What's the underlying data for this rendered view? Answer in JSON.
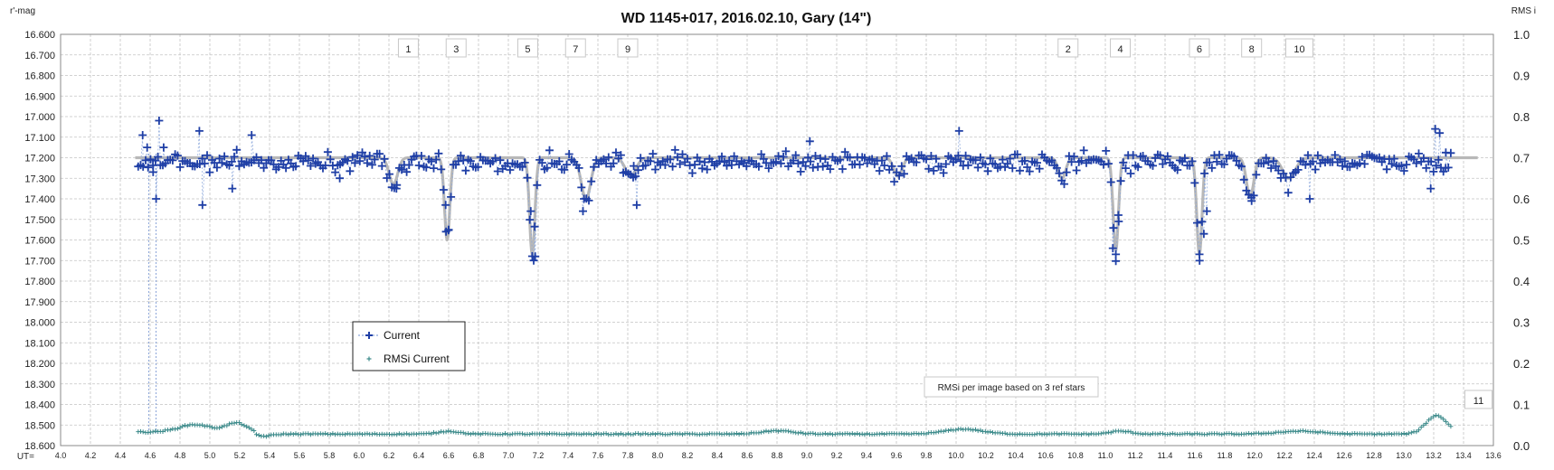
{
  "chart_data": {
    "type": "scatter",
    "title": "WD 1145+017, 2016.02.10,  Gary (14\")",
    "ylabel_left": "r'-mag",
    "ylabel_right": "RMS i",
    "xlabel": "UT=",
    "xlim": [
      4.0,
      13.6
    ],
    "x_ticks": [
      "4.0",
      "4.2",
      "4.4",
      "4.6",
      "4.8",
      "5.0",
      "5.2",
      "5.4",
      "5.6",
      "5.8",
      "6.0",
      "6.2",
      "6.4",
      "6.6",
      "6.8",
      "7.0",
      "7.2",
      "7.4",
      "7.6",
      "7.8",
      "8.0",
      "8.2",
      "8.4",
      "8.6",
      "8.8",
      "9.0",
      "9.2",
      "9.4",
      "9.6",
      "9.8",
      "10.0",
      "10.2",
      "10.4",
      "10.6",
      "10.8",
      "11.0",
      "11.2",
      "11.4",
      "11.6",
      "11.8",
      "12.0",
      "12.2",
      "12.4",
      "12.6",
      "12.8",
      "13.0",
      "13.2",
      "13.4",
      "13.6"
    ],
    "ylim_left": [
      16.6,
      18.6
    ],
    "y_ticks_left": [
      "16.600",
      "16.700",
      "16.800",
      "16.900",
      "17.000",
      "17.100",
      "17.200",
      "17.300",
      "17.400",
      "17.500",
      "17.600",
      "17.700",
      "17.800",
      "17.900",
      "18.000",
      "18.100",
      "18.200",
      "18.300",
      "18.400",
      "18.500",
      "18.600"
    ],
    "ylim_right": [
      0.0,
      1.0
    ],
    "y_ticks_right": [
      "1.0",
      "0.9",
      "0.8",
      "0.7",
      "0.6",
      "0.5",
      "0.4",
      "0.3",
      "0.2",
      "0.1",
      "0.0"
    ],
    "grid": true,
    "model_baseline": 17.2,
    "dips": [
      {
        "x": 6.23,
        "depth": 0.13,
        "width": 0.04
      },
      {
        "x": 6.59,
        "depth": 0.4,
        "width": 0.025
      },
      {
        "x": 7.16,
        "depth": 0.47,
        "width": 0.025
      },
      {
        "x": 7.52,
        "depth": 0.2,
        "width": 0.045
      },
      {
        "x": 7.82,
        "depth": 0.09,
        "width": 0.05
      },
      {
        "x": 9.61,
        "depth": 0.09,
        "width": 0.04
      },
      {
        "x": 10.71,
        "depth": 0.1,
        "width": 0.035
      },
      {
        "x": 11.07,
        "depth": 0.45,
        "width": 0.025
      },
      {
        "x": 11.63,
        "depth": 0.47,
        "width": 0.025
      },
      {
        "x": 11.97,
        "depth": 0.19,
        "width": 0.035
      },
      {
        "x": 12.23,
        "depth": 0.1,
        "width": 0.06
      }
    ],
    "series": [
      {
        "name": "Current",
        "color": "#1f3fa6",
        "x_start": 4.52,
        "x_end": 13.32,
        "baseline": 17.22,
        "scatter": 0.045,
        "extreme_points": [
          [
            4.55,
            17.09
          ],
          [
            4.58,
            17.15
          ],
          [
            4.62,
            17.27
          ],
          [
            4.64,
            17.4
          ],
          [
            4.66,
            17.02
          ],
          [
            4.69,
            17.15
          ],
          [
            4.95,
            17.43
          ],
          [
            4.93,
            17.07
          ],
          [
            5.15,
            17.35
          ],
          [
            5.28,
            17.09
          ],
          [
            5.87,
            17.3
          ],
          [
            6.25,
            17.35
          ],
          [
            6.58,
            17.43
          ],
          [
            6.6,
            17.55
          ],
          [
            7.15,
            17.46
          ],
          [
            7.18,
            17.68
          ],
          [
            7.17,
            17.7
          ],
          [
            7.5,
            17.46
          ],
          [
            7.86,
            17.43
          ],
          [
            7.84,
            17.24
          ],
          [
            9.02,
            17.12
          ],
          [
            10.02,
            17.07
          ],
          [
            11.05,
            17.64
          ],
          [
            11.07,
            17.67
          ],
          [
            11.09,
            17.51
          ],
          [
            11.63,
            17.67
          ],
          [
            11.66,
            17.57
          ],
          [
            11.68,
            17.46
          ],
          [
            11.96,
            17.38
          ],
          [
            11.98,
            17.41
          ],
          [
            12.37,
            17.4
          ],
          [
            13.18,
            17.35
          ],
          [
            13.21,
            17.06
          ],
          [
            13.24,
            17.08
          ],
          [
            13.28,
            17.25
          ]
        ]
      },
      {
        "name": "RMSi Current",
        "color": "#3d8b8b",
        "baseline_rms": 0.028,
        "bumps": [
          {
            "x": 4.9,
            "h": 0.018,
            "w": 0.15
          },
          {
            "x": 5.18,
            "h": 0.022,
            "w": 0.1
          },
          {
            "x": 5.35,
            "h": -0.006,
            "w": 0.08
          },
          {
            "x": 6.6,
            "h": 0.007,
            "w": 0.1
          },
          {
            "x": 8.8,
            "h": 0.008,
            "w": 0.15
          },
          {
            "x": 10.05,
            "h": 0.012,
            "w": 0.18
          },
          {
            "x": 11.1,
            "h": 0.007,
            "w": 0.1
          },
          {
            "x": 12.3,
            "h": 0.007,
            "w": 0.2
          },
          {
            "x": 13.22,
            "h": 0.045,
            "w": 0.1
          }
        ]
      }
    ],
    "legend": {
      "position": "lower-left",
      "entries": [
        "Current",
        "RMSi Current"
      ]
    },
    "note": "RMSi per image based on 3 ref stars",
    "fragment_labels": [
      {
        "text": "1",
        "x": 6.33,
        "y": 16.62
      },
      {
        "text": "3",
        "x": 6.65,
        "y": 16.61
      },
      {
        "text": "5",
        "x": 7.13,
        "y": 16.61
      },
      {
        "text": "7",
        "x": 7.45,
        "y": 16.61
      },
      {
        "text": "9",
        "x": 7.8,
        "y": 16.6
      },
      {
        "text": "2",
        "x": 10.75,
        "y": 16.61
      },
      {
        "text": "4",
        "x": 11.1,
        "y": 16.6
      },
      {
        "text": "6",
        "x": 11.63,
        "y": 16.6
      },
      {
        "text": "8",
        "x": 11.98,
        "y": 16.61
      },
      {
        "text": "10",
        "x": 12.3,
        "y": 16.62
      },
      {
        "text": "11",
        "x": 13.5,
        "y": 18.38
      }
    ]
  }
}
